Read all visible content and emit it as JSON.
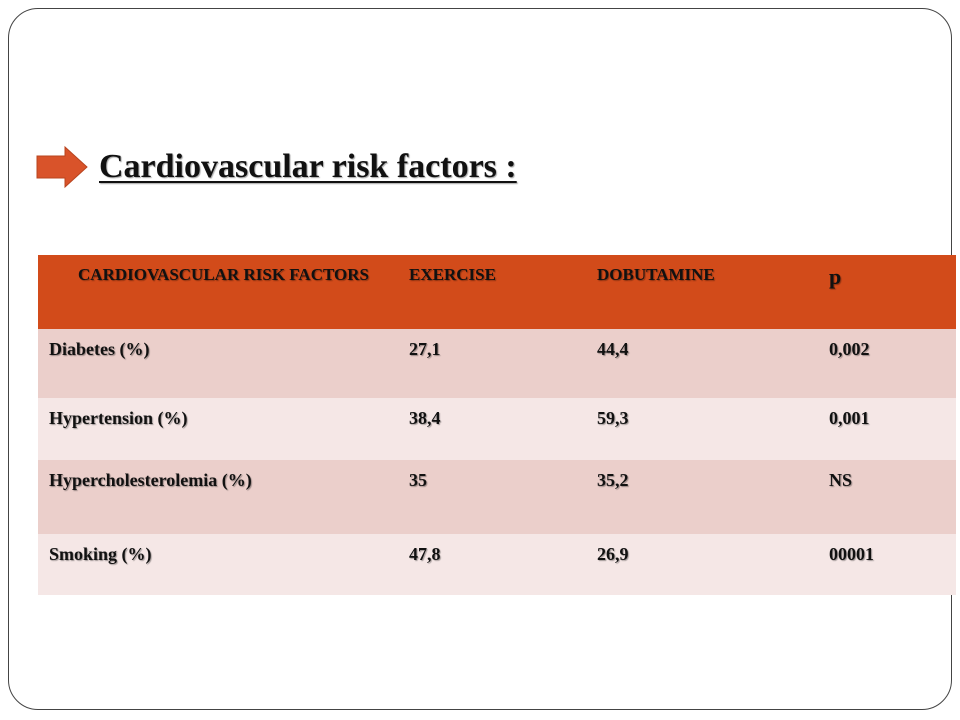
{
  "heading": {
    "title": "Cardiovascular risk factors :",
    "icon": "right-arrow-icon",
    "icon_color": "#d9532a"
  },
  "table": {
    "header_color": "#d24b1a",
    "row_colors": [
      "#ebcfcb",
      "#f5e7e6"
    ],
    "columns": [
      "CARDIOVASCULAR RISK FACTORS",
      "EXERCISE",
      "DOBUTAMINE",
      "p"
    ],
    "rows": [
      {
        "factor": "Diabetes (%)",
        "exercise": "27,1",
        "dobutamine": "44,4",
        "p": "0,002"
      },
      {
        "factor": "Hypertension (%)",
        "exercise": "38,4",
        "dobutamine": "59,3",
        "p": "0,001"
      },
      {
        "factor": "Hypercholesterolemia (%)",
        "exercise": "35",
        "dobutamine": "35,2",
        "p": "NS"
      },
      {
        "factor": "Smoking (%)",
        "exercise": "47,8",
        "dobutamine": "26,9",
        "p": "00001"
      }
    ]
  }
}
